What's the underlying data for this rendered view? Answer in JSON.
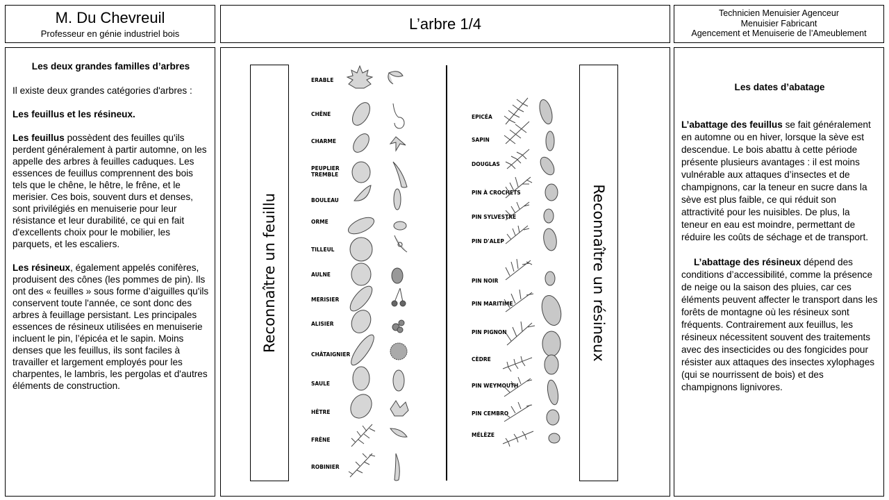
{
  "header": {
    "teacher_name": "M. Du Chevreuil",
    "teacher_role": "Professeur en génie industriel bois",
    "title": "L’arbre 1/4",
    "courses": [
      "Technicien Menuisier Agenceur",
      "Menuisier Fabricant",
      "Agencement et Menuiserie de l’Ameublement"
    ]
  },
  "left": {
    "heading": "Les deux grandes familles d’arbres",
    "intro": "Il existe deux grandes catégories d'arbres :",
    "families": "Les feuillus et les résineux.",
    "feuillus_label": "Les feuillus",
    "feuillus_text": " possèdent des feuilles qu'ils perdent généralement à partir automne, on les appelle des arbres à feuilles caduques. Les essences de feuillus comprennent des bois tels que le chêne, le hêtre, le frêne, et le merisier. Ces bois, souvent durs et denses, sont privilégiés en menuiserie pour leur résistance et leur durabilité, ce qui en fait d'excellents choix pour le mobilier, les parquets, et les escaliers.",
    "resineux_label": "Les résineux",
    "resineux_text": ", également appelés conifères, produisent des cônes (les pommes de pin). Ils ont des « feuilles » sous forme d’aiguilles qu'ils conservent toute l'année, ce sont donc des arbres à feuillage persistant. Les principales essences de résineux utilisées en menuiserie incluent le pin, l’épicéa et le sapin. Moins denses que les feuillus, ils sont faciles à travailler et largement employés pour les charpentes, le lambris, les pergolas et d'autres éléments de construction."
  },
  "center": {
    "left_vertical": "Reconnaître un feuillu",
    "right_vertical": "Reconnaître un résineux",
    "feuillus": [
      "ERABLE",
      "CHÊNE",
      "CHARME",
      "PEUPLIER TREMBLE",
      "BOULEAU",
      "ORME",
      "TILLEUL",
      "AULNE",
      "MERISIER",
      "ALISIER",
      "CHÂTAIGNIER",
      "SAULE",
      "HÊTRE",
      "FRÊNE",
      "ROBINIER"
    ],
    "resineux": [
      "EPICÉA",
      "SAPIN",
      "DOUGLAS",
      "PIN À CROCHETS",
      "PIN SYLVESTRE",
      "PIN D'ALEP",
      "PIN NOIR",
      "PIN MARITIME",
      "PIN PIGNON",
      "CÈDRE",
      "PIN WEYMOUTH",
      "PIN CEMBRO",
      "MÉLÈZE"
    ]
  },
  "right": {
    "heading": "Les dates d’abatage",
    "feuillus_label": "L’abattage des feuillus",
    "feuillus_text": " se fait généralement en automne ou en hiver, lorsque la sève est descendue. Le bois abattu à cette période présente plusieurs avantages : il est moins vulnérable aux attaques d’insectes et de champignons, car la teneur en sucre dans la sève est plus faible, ce qui réduit son attractivité pour les nuisibles. De plus, la teneur en eau est moindre, permettant de réduire les coûts de séchage et de transport.",
    "resineux_label": "L’abattage des résineux",
    "resineux_text": " dépend des conditions d’accessibilité, comme la présence de neige ou la saison des pluies, car ces éléments peuvent affecter le transport dans les forêts de montagne où les résineux sont fréquents. Contrairement aux feuillus, les résineux nécessitent souvent des traitements avec des insecticides ou des fongicides pour résister aux attaques des insectes xylophages (qui se nourrissent de bois) et des champignons lignivores."
  }
}
